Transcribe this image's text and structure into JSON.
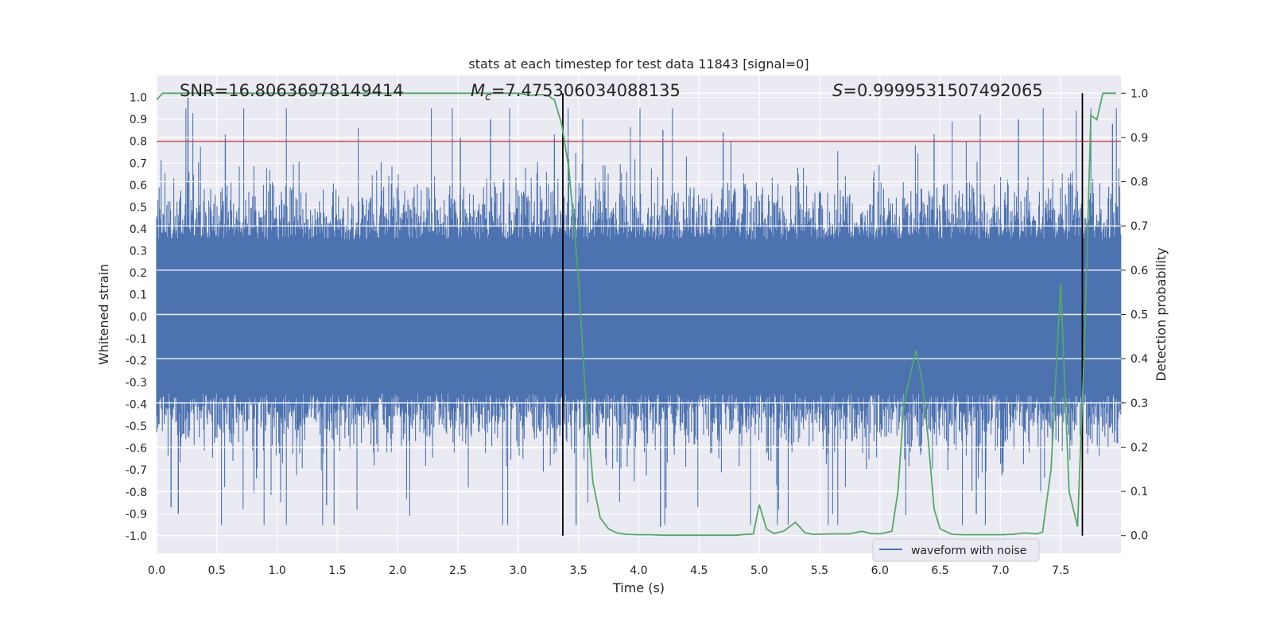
{
  "chart_data": {
    "type": "line",
    "title": "stats at each timestep for test data 11843 [signal=0]",
    "xlabel": "Time (s)",
    "ylabel_left": "Whitened strain",
    "ylabel_right": "Detection probability",
    "xlim": [
      0.0,
      8.0
    ],
    "ylim_left": [
      -1.08,
      1.1
    ],
    "ylim_right": [
      -0.04,
      1.04
    ],
    "x_ticks": [
      "0.0",
      "0.5",
      "1.0",
      "1.5",
      "2.0",
      "2.5",
      "3.0",
      "3.5",
      "4.0",
      "4.5",
      "5.0",
      "5.5",
      "6.0",
      "6.5",
      "7.0",
      "7.5"
    ],
    "y_ticks_left": [
      "-1.0",
      "-0.9",
      "-0.8",
      "-0.7",
      "-0.6",
      "-0.5",
      "-0.4",
      "-0.3",
      "-0.2",
      "-0.1",
      "0.0",
      "0.1",
      "0.2",
      "0.3",
      "0.4",
      "0.5",
      "0.6",
      "0.7",
      "0.8",
      "0.9",
      "1.0"
    ],
    "y_ticks_right": [
      "0.0",
      "0.1",
      "0.2",
      "0.3",
      "0.4",
      "0.5",
      "0.6",
      "0.7",
      "0.8",
      "0.9",
      "1.0"
    ],
    "grid": true,
    "annotations": {
      "snr": "SNR=16.80636978149414",
      "mc_symbol": "M",
      "mc_sub": "c",
      "mc_value": "=7.475306034088135",
      "s_symbol": "S",
      "s_value": "=0.9999531507492065"
    },
    "threshold": {
      "value": 0.8,
      "axis": "left",
      "color": "#c44e52"
    },
    "vertical_markers": [
      3.37,
      7.68
    ],
    "legend": {
      "entries": [
        "waveform with noise"
      ],
      "placement": "lower-right"
    },
    "series": [
      {
        "name": "waveform with noise",
        "axis": "left",
        "color": "#4c72b0",
        "kind": "noise-envelope",
        "typical_amplitude": 0.45,
        "peak_samples": [
          {
            "t": 0.26,
            "v": 1.0
          },
          {
            "t": 0.12,
            "v": -0.87
          },
          {
            "t": 0.18,
            "v": -0.9
          },
          {
            "t": 0.57,
            "v": 0.83
          },
          {
            "t": 1.41,
            "v": -0.86
          },
          {
            "t": 2.52,
            "v": 0.82
          },
          {
            "t": 2.77,
            "v": 0.9
          },
          {
            "t": 3.3,
            "v": 0.83
          },
          {
            "t": 3.48,
            "v": -0.95
          },
          {
            "t": 4.2,
            "v": 0.85
          },
          {
            "t": 4.18,
            "v": -0.96
          },
          {
            "t": 4.7,
            "v": 0.84
          },
          {
            "t": 6.45,
            "v": 0.83
          },
          {
            "t": 6.8,
            "v": -0.9
          },
          {
            "t": 7.15,
            "v": 0.9
          },
          {
            "t": 7.93,
            "v": 0.88
          }
        ]
      },
      {
        "name": "detection probability",
        "axis": "right",
        "color": "#55a868",
        "x": [
          0.0,
          0.05,
          0.1,
          0.5,
          1.0,
          1.5,
          2.0,
          2.5,
          3.0,
          3.1,
          3.2,
          3.25,
          3.3,
          3.36,
          3.42,
          3.5,
          3.55,
          3.62,
          3.68,
          3.75,
          3.82,
          3.9,
          4.0,
          4.1,
          4.2,
          4.4,
          4.6,
          4.8,
          4.95,
          5.0,
          5.06,
          5.12,
          5.2,
          5.3,
          5.38,
          5.45,
          5.6,
          5.75,
          5.85,
          5.92,
          6.0,
          6.1,
          6.15,
          6.2,
          6.3,
          6.35,
          6.4,
          6.45,
          6.5,
          6.6,
          6.7,
          6.85,
          7.0,
          7.1,
          7.2,
          7.3,
          7.35,
          7.42,
          7.5,
          7.57,
          7.64,
          7.7,
          7.75,
          7.8,
          7.85,
          7.92,
          7.96
        ],
        "y": [
          0.985,
          1.0,
          1.0,
          1.0,
          1.0,
          1.0,
          1.0,
          1.0,
          1.0,
          0.995,
          0.997,
          0.994,
          0.985,
          0.93,
          0.83,
          0.58,
          0.35,
          0.12,
          0.04,
          0.015,
          0.006,
          0.003,
          0.002,
          0.002,
          0.001,
          0.001,
          0.001,
          0.001,
          0.004,
          0.07,
          0.015,
          0.005,
          0.01,
          0.03,
          0.006,
          0.003,
          0.004,
          0.004,
          0.01,
          0.005,
          0.004,
          0.01,
          0.1,
          0.3,
          0.42,
          0.35,
          0.22,
          0.06,
          0.015,
          0.003,
          0.002,
          0.002,
          0.002,
          0.003,
          0.006,
          0.004,
          0.008,
          0.15,
          0.57,
          0.1,
          0.02,
          0.45,
          0.95,
          0.94,
          1.0,
          1.0,
          1.0
        ]
      }
    ]
  }
}
